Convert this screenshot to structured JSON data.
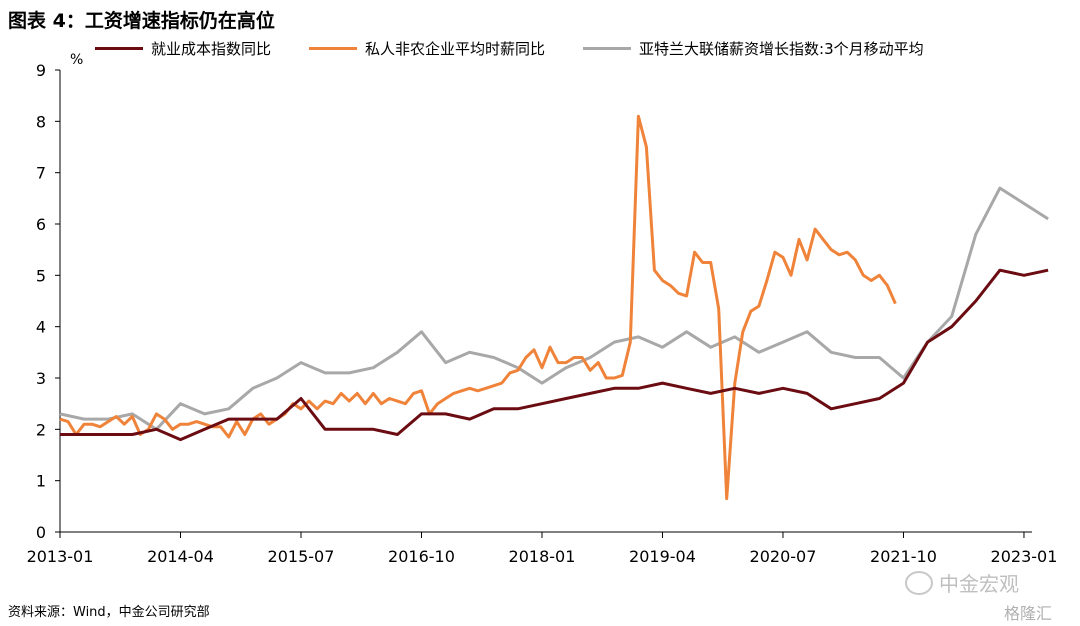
{
  "title": "图表 4：工资增速指标仍在高位",
  "unit": "%",
  "source": "资料来源：Wind，中金公司研究部",
  "watermark": "中金宏观",
  "corner_mark": "格隆汇",
  "colors": {
    "eci": "#6b0c12",
    "private": "#f0833a",
    "atlanta": "#a8a8a8",
    "axis": "#000000"
  },
  "chart_data": {
    "type": "line",
    "xlabel": "",
    "ylabel": "%",
    "ylim": [
      0,
      9
    ],
    "yticks": [
      0,
      1,
      2,
      3,
      4,
      5,
      6,
      7,
      8,
      9
    ],
    "xlim": [
      "2013-01",
      "2023-02"
    ],
    "xticks": [
      "2013-01",
      "2014-04",
      "2015-07",
      "2016-10",
      "2018-01",
      "2019-04",
      "2020-07",
      "2021-10",
      "2023-01"
    ],
    "legend_position": "top",
    "series": [
      {
        "name": "就业成本指数同比",
        "color": "#6b0c12",
        "points": [
          [
            "2013-01",
            1.9
          ],
          [
            "2013-04",
            1.9
          ],
          [
            "2013-07",
            1.9
          ],
          [
            "2013-10",
            1.9
          ],
          [
            "2014-01",
            2.0
          ],
          [
            "2014-04",
            1.8
          ],
          [
            "2014-07",
            2.0
          ],
          [
            "2014-10",
            2.2
          ],
          [
            "2015-01",
            2.2
          ],
          [
            "2015-04",
            2.2
          ],
          [
            "2015-07",
            2.6
          ],
          [
            "2015-10",
            2.0
          ],
          [
            "2016-01",
            2.0
          ],
          [
            "2016-04",
            2.0
          ],
          [
            "2016-07",
            1.9
          ],
          [
            "2016-10",
            2.3
          ],
          [
            "2017-01",
            2.3
          ],
          [
            "2017-04",
            2.2
          ],
          [
            "2017-07",
            2.4
          ],
          [
            "2017-10",
            2.4
          ],
          [
            "2018-01",
            2.5
          ],
          [
            "2018-04",
            2.6
          ],
          [
            "2018-07",
            2.7
          ],
          [
            "2018-10",
            2.8
          ],
          [
            "2019-01",
            2.8
          ],
          [
            "2019-04",
            2.9
          ],
          [
            "2019-07",
            2.8
          ],
          [
            "2019-10",
            2.7
          ],
          [
            "2020-01",
            2.8
          ],
          [
            "2020-04",
            2.7
          ],
          [
            "2020-07",
            2.8
          ],
          [
            "2020-10",
            2.7
          ],
          [
            "2021-01",
            2.4
          ],
          [
            "2021-04",
            2.5
          ],
          [
            "2021-07",
            2.6
          ],
          [
            "2021-10",
            2.9
          ],
          [
            "2022-01",
            3.7
          ],
          [
            "2022-04",
            4.0
          ],
          [
            "2022-07",
            4.5
          ],
          [
            "2022-10",
            5.1
          ],
          [
            "2023-01",
            5.0
          ],
          [
            "2023-04",
            5.1
          ]
        ]
      },
      {
        "name": "私人非农企业平均时薪同比",
        "color": "#f0833a",
        "points": [
          [
            "2013-01",
            2.2
          ],
          [
            "2013-02",
            2.15
          ],
          [
            "2013-03",
            1.9
          ],
          [
            "2013-04",
            2.1
          ],
          [
            "2013-05",
            2.1
          ],
          [
            "2013-06",
            2.05
          ],
          [
            "2013-07",
            2.15
          ],
          [
            "2013-08",
            2.25
          ],
          [
            "2013-09",
            2.1
          ],
          [
            "2013-10",
            2.25
          ],
          [
            "2013-11",
            1.9
          ],
          [
            "2013-12",
            2.0
          ],
          [
            "2014-01",
            2.3
          ],
          [
            "2014-02",
            2.2
          ],
          [
            "2014-03",
            2.0
          ],
          [
            "2014-04",
            2.1
          ],
          [
            "2014-05",
            2.1
          ],
          [
            "2014-06",
            2.15
          ],
          [
            "2014-07",
            2.1
          ],
          [
            "2014-08",
            2.05
          ],
          [
            "2014-09",
            2.05
          ],
          [
            "2014-10",
            1.85
          ],
          [
            "2014-11",
            2.15
          ],
          [
            "2014-12",
            1.9
          ],
          [
            "2015-01",
            2.2
          ],
          [
            "2015-02",
            2.3
          ],
          [
            "2015-03",
            2.1
          ],
          [
            "2015-04",
            2.2
          ],
          [
            "2015-05",
            2.3
          ],
          [
            "2015-06",
            2.5
          ],
          [
            "2015-07",
            2.4
          ],
          [
            "2015-08",
            2.55
          ],
          [
            "2015-09",
            2.4
          ],
          [
            "2015-10",
            2.55
          ],
          [
            "2015-11",
            2.5
          ],
          [
            "2015-12",
            2.7
          ],
          [
            "2016-01",
            2.55
          ],
          [
            "2016-02",
            2.7
          ],
          [
            "2016-03",
            2.5
          ],
          [
            "2016-04",
            2.7
          ],
          [
            "2016-05",
            2.5
          ],
          [
            "2016-06",
            2.6
          ],
          [
            "2016-07",
            2.55
          ],
          [
            "2016-08",
            2.5
          ],
          [
            "2016-09",
            2.7
          ],
          [
            "2016-10",
            2.75
          ],
          [
            "2016-11",
            2.3
          ],
          [
            "2016-12",
            2.5
          ],
          [
            "2017-01",
            2.6
          ],
          [
            "2017-02",
            2.7
          ],
          [
            "2017-03",
            2.75
          ],
          [
            "2017-04",
            2.8
          ],
          [
            "2017-05",
            2.75
          ],
          [
            "2017-06",
            2.8
          ],
          [
            "2017-07",
            2.85
          ],
          [
            "2017-08",
            2.9
          ],
          [
            "2017-09",
            3.1
          ],
          [
            "2017-10",
            3.15
          ],
          [
            "2017-11",
            3.4
          ],
          [
            "2017-12",
            3.55
          ],
          [
            "2018-01",
            3.2
          ],
          [
            "2018-02",
            3.6
          ],
          [
            "2018-03",
            3.3
          ],
          [
            "2018-04",
            3.3
          ],
          [
            "2018-05",
            3.4
          ],
          [
            "2018-06",
            3.4
          ],
          [
            "2018-07",
            3.15
          ],
          [
            "2018-08",
            3.3
          ],
          [
            "2018-09",
            3.0
          ],
          [
            "2018-10",
            3.0
          ],
          [
            "2018-11",
            3.05
          ],
          [
            "2018-12",
            3.7
          ],
          [
            "2019-01",
            8.1
          ],
          [
            "2019-02",
            7.5
          ],
          [
            "2019-03",
            5.1
          ],
          [
            "2019-04",
            4.9
          ],
          [
            "2019-05",
            4.8
          ],
          [
            "2019-06",
            4.65
          ],
          [
            "2019-07",
            4.6
          ],
          [
            "2019-08",
            5.45
          ],
          [
            "2019-09",
            5.25
          ],
          [
            "2019-10",
            5.25
          ],
          [
            "2019-11",
            4.35
          ],
          [
            "2019-12",
            0.65
          ],
          [
            "2020-01",
            2.9
          ],
          [
            "2020-02",
            3.9
          ],
          [
            "2020-03",
            4.3
          ],
          [
            "2020-04",
            4.4
          ],
          [
            "2020-05",
            4.9
          ],
          [
            "2020-06",
            5.45
          ],
          [
            "2020-07",
            5.35
          ],
          [
            "2020-08",
            5.0
          ],
          [
            "2020-09",
            5.7
          ],
          [
            "2020-10",
            5.3
          ],
          [
            "2020-11",
            5.9
          ],
          [
            "2020-12",
            5.7
          ],
          [
            "2021-01",
            5.5
          ],
          [
            "2021-02",
            5.4
          ],
          [
            "2021-03",
            5.45
          ],
          [
            "2021-04",
            5.3
          ],
          [
            "2021-05",
            5.0
          ],
          [
            "2021-06",
            4.9
          ],
          [
            "2021-07",
            5.0
          ],
          [
            "2021-08",
            4.8
          ],
          [
            "2021-09",
            4.45
          ]
        ]
      },
      {
        "name": "亚特兰大联储薪资增长指数:3个月移动平均",
        "color": "#a8a8a8",
        "points": [
          [
            "2013-01",
            2.3
          ],
          [
            "2013-04",
            2.2
          ],
          [
            "2013-07",
            2.2
          ],
          [
            "2013-10",
            2.3
          ],
          [
            "2014-01",
            2.0
          ],
          [
            "2014-04",
            2.5
          ],
          [
            "2014-07",
            2.3
          ],
          [
            "2014-10",
            2.4
          ],
          [
            "2015-01",
            2.8
          ],
          [
            "2015-04",
            3.0
          ],
          [
            "2015-07",
            3.3
          ],
          [
            "2015-10",
            3.1
          ],
          [
            "2016-01",
            3.1
          ],
          [
            "2016-04",
            3.2
          ],
          [
            "2016-07",
            3.5
          ],
          [
            "2016-10",
            3.9
          ],
          [
            "2017-01",
            3.3
          ],
          [
            "2017-04",
            3.5
          ],
          [
            "2017-07",
            3.4
          ],
          [
            "2017-10",
            3.2
          ],
          [
            "2018-01",
            2.9
          ],
          [
            "2018-04",
            3.2
          ],
          [
            "2018-07",
            3.4
          ],
          [
            "2018-10",
            3.7
          ],
          [
            "2019-01",
            3.8
          ],
          [
            "2019-04",
            3.6
          ],
          [
            "2019-07",
            3.9
          ],
          [
            "2019-10",
            3.6
          ],
          [
            "2020-01",
            3.8
          ],
          [
            "2020-04",
            3.5
          ],
          [
            "2020-07",
            3.7
          ],
          [
            "2020-10",
            3.9
          ],
          [
            "2021-01",
            3.5
          ],
          [
            "2021-04",
            3.4
          ],
          [
            "2021-07",
            3.4
          ],
          [
            "2021-10",
            3.0
          ],
          [
            "2022-01",
            3.7
          ],
          [
            "2022-04",
            4.2
          ],
          [
            "2022-07",
            5.8
          ],
          [
            "2022-10",
            6.7
          ],
          [
            "2023-01",
            6.4
          ],
          [
            "2023-04",
            6.1
          ]
        ]
      }
    ]
  }
}
